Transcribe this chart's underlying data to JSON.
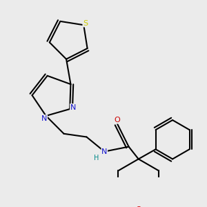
{
  "background_color": "#ebebeb",
  "bond_color": "#000000",
  "atom_colors": {
    "S": "#cccc00",
    "N": "#1010cc",
    "O": "#cc0000",
    "H": "#008888",
    "C": "#000000"
  },
  "figsize": [
    3.0,
    3.0
  ],
  "dpi": 100,
  "lw": 1.5
}
